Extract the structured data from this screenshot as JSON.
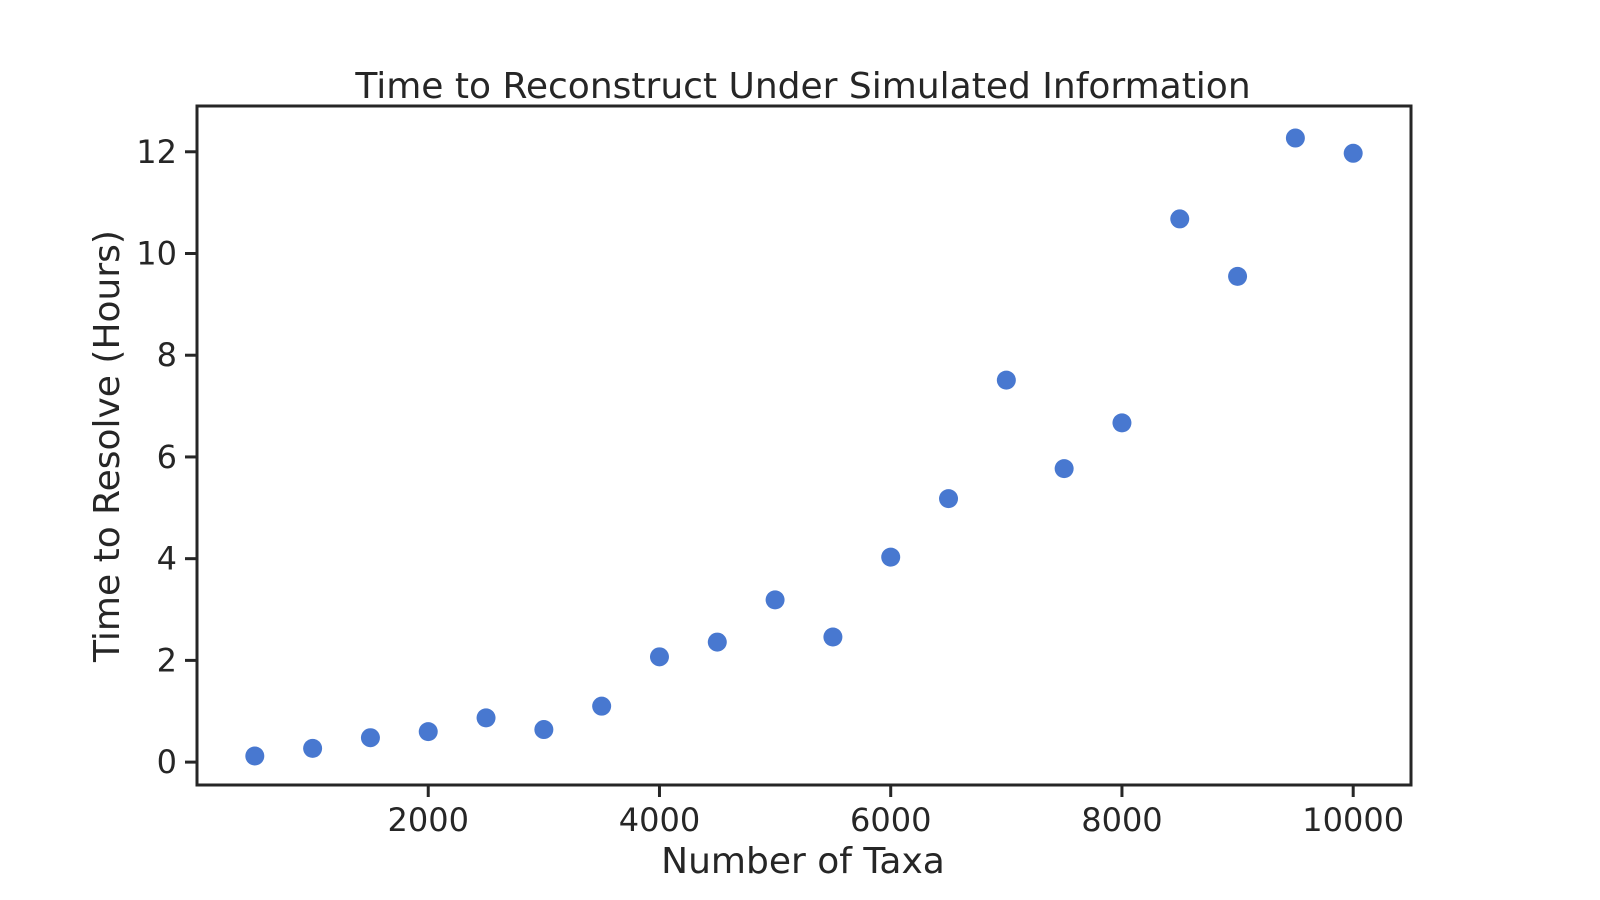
{
  "chart_data": {
    "type": "scatter",
    "title": "Time to Reconstruct Under Simulated Information",
    "xlabel": "Number of Taxa",
    "ylabel": "Time to Resolve (Hours)",
    "xlim": [
      0,
      10500
    ],
    "ylim": [
      -0.45,
      12.9
    ],
    "xticks": [
      2000,
      4000,
      6000,
      8000,
      10000
    ],
    "yticks": [
      0,
      2,
      4,
      6,
      8,
      10,
      12
    ],
    "grid": false,
    "marker_color": "#4878d0",
    "series": [
      {
        "x": [
          500,
          1000,
          1500,
          2000,
          2500,
          3000,
          3500,
          4000,
          4500,
          5000,
          5500,
          6000,
          6500,
          7000,
          7500,
          8000,
          8500,
          9000,
          9500,
          10000
        ],
        "y": [
          0.12,
          0.27,
          0.48,
          0.6,
          0.87,
          0.64,
          1.1,
          2.07,
          2.36,
          3.19,
          2.46,
          4.03,
          5.18,
          7.51,
          5.77,
          6.67,
          10.68,
          9.55,
          12.27,
          11.97
        ]
      }
    ]
  }
}
